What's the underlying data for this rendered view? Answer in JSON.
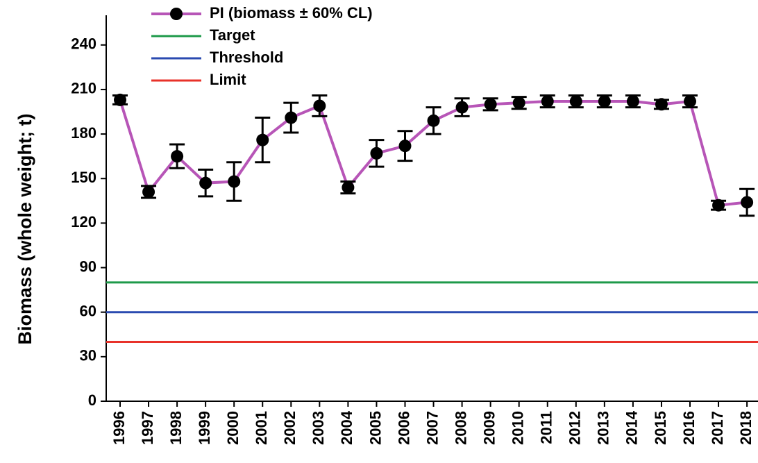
{
  "chart_data": {
    "type": "line",
    "y_label": "Biomass (whole weight; t)",
    "categories": [
      "1996",
      "1997",
      "1998",
      "1999",
      "2000",
      "2001",
      "2002",
      "2003",
      "2004",
      "2005",
      "2006",
      "2007",
      "2008",
      "2009",
      "2010",
      "2011",
      "2012",
      "2013",
      "2014",
      "2015",
      "2016",
      "2017",
      "2018"
    ],
    "series": [
      {
        "name": "PI (biomass ± 60% CL)",
        "color": "#b755b7",
        "values": [
          203,
          141,
          165,
          147,
          148,
          176,
          191,
          199,
          144,
          167,
          172,
          189,
          198,
          200,
          201,
          202,
          202,
          202,
          202,
          200,
          202,
          132,
          134
        ],
        "errors": [
          3,
          4,
          8,
          9,
          13,
          15,
          10,
          7,
          4,
          9,
          10,
          9,
          6,
          4,
          4,
          4,
          4,
          4,
          4,
          3,
          4,
          3,
          9
        ]
      }
    ],
    "reference_lines": [
      {
        "name": "Target",
        "color": "#1e9a4a",
        "value": 80
      },
      {
        "name": "Threshold",
        "color": "#2a4ab0",
        "value": 60
      },
      {
        "name": "Limit",
        "color": "#e8322a",
        "value": 40
      }
    ],
    "ylim": [
      0,
      260
    ],
    "yticks": [
      0,
      30,
      60,
      90,
      120,
      150,
      180,
      210,
      240
    ]
  }
}
